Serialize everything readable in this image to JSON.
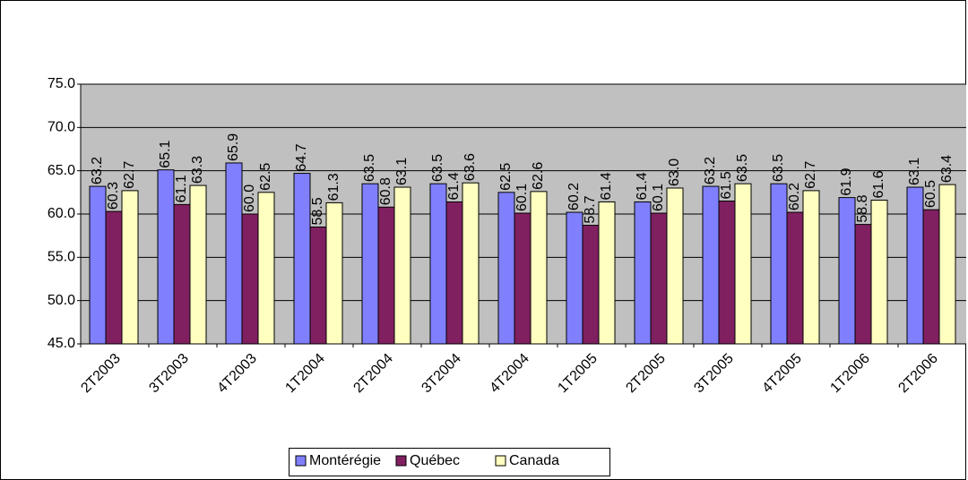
{
  "chart_data": {
    "type": "bar",
    "categories": [
      "2T2003",
      "3T2003",
      "4T2003",
      "1T2004",
      "2T2004",
      "3T2004",
      "4T2004",
      "1T2005",
      "2T2005",
      "3T2005",
      "4T2005",
      "1T2006",
      "2T2006"
    ],
    "series": [
      {
        "name": "Montérégie",
        "color": "#8080ff",
        "values": [
          63.2,
          65.1,
          65.9,
          64.7,
          63.5,
          63.5,
          62.5,
          60.2,
          61.4,
          63.2,
          63.5,
          61.9,
          63.1
        ],
        "value_labels": [
          "63.2",
          "65.1",
          "65.9",
          "64.7",
          "63.5",
          "63.5",
          "62.5",
          "60.2",
          "61.4",
          "63.2",
          "63.5",
          "61.9",
          "63.1"
        ]
      },
      {
        "name": "Québec",
        "color": "#802060",
        "values": [
          60.3,
          61.1,
          60.0,
          58.5,
          60.8,
          61.4,
          60.1,
          58.7,
          60.1,
          61.5,
          60.2,
          58.8,
          60.5
        ],
        "value_labels": [
          "60.3",
          "61.1",
          "60.0",
          "58.5",
          "60.8",
          "61.4",
          "60.1",
          "58.7",
          "60.1",
          "61.5",
          "60.2",
          "58.8",
          "60.5"
        ]
      },
      {
        "name": "Canada",
        "color": "#ffffc0",
        "values": [
          62.7,
          63.3,
          62.5,
          61.3,
          63.1,
          63.6,
          62.6,
          61.4,
          63.0,
          63.5,
          62.7,
          61.6,
          63.4
        ],
        "value_labels": [
          "62.7",
          "63.3",
          "62.5",
          "61.3",
          "63.1",
          "63.6",
          "62.6",
          "61.4",
          "63.0",
          "63.5",
          "62.7",
          "61.6",
          "63.4"
        ]
      }
    ],
    "ylim": [
      45,
      75
    ],
    "yticks": [
      {
        "value": 45,
        "label": "45.0"
      },
      {
        "value": 50,
        "label": "50.0"
      },
      {
        "value": 55,
        "label": "55.0"
      },
      {
        "value": 60,
        "label": "60.0"
      },
      {
        "value": 65,
        "label": "65.0"
      },
      {
        "value": 70,
        "label": "70.0"
      },
      {
        "value": 75,
        "label": "75.0"
      }
    ],
    "grid": true,
    "legend": "bottom"
  }
}
